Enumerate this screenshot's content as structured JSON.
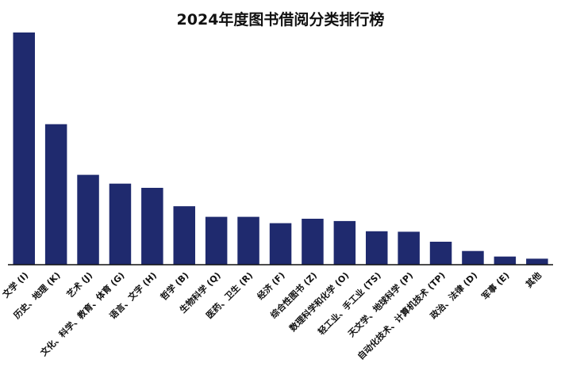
{
  "chart_data": {
    "type": "bar",
    "title": "2024年度图书借阅分类排行榜",
    "xlabel": "",
    "ylabel": "",
    "categories": [
      "文学 (I)",
      "历史、地理 (K)",
      "艺术 (J)",
      "文化、科学、教育、体育 (G)",
      "语言、文字 (H)",
      "哲学 (B)",
      "生物科学 (Q)",
      "医药、卫生 (R)",
      "经济 (F)",
      "综合性图书 (Z)",
      "数理科学和化学 (O)",
      "轻工业、手工业 (TS)",
      "天文学、地球科学 (P)",
      "自动化技术、计算机技术 (TP)",
      "政治、法律 (D)",
      "军事 (E)",
      "其他"
    ],
    "values": [
      100,
      60.5,
      38.7,
      34.9,
      33.1,
      25.2,
      20.6,
      20.6,
      17.9,
      19.8,
      18.8,
      14.4,
      14.2,
      9.9,
      5.9,
      3.5,
      2.6
    ],
    "ylim": [
      0,
      100
    ],
    "grid": false,
    "legend": "none",
    "bar_color": "#1f2a6e",
    "axis_color": "#111111"
  }
}
